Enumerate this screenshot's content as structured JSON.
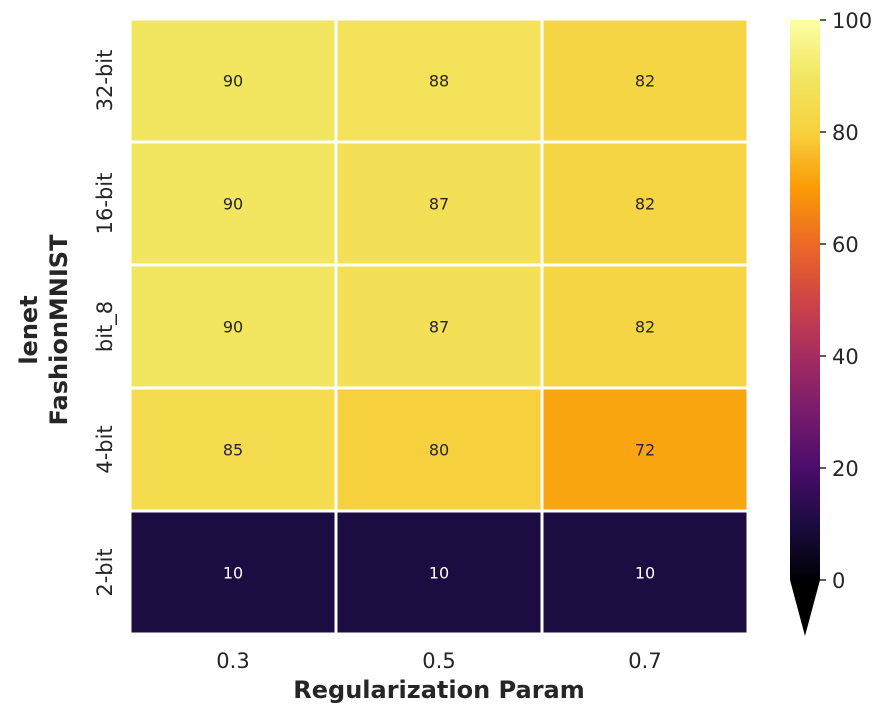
{
  "chart_data": {
    "type": "heatmap",
    "title": "",
    "xlabel": "Regularization Param",
    "ylabel_lines": [
      "lenet",
      "FashionMNIST"
    ],
    "x_categories": [
      "0.3",
      "0.5",
      "0.7"
    ],
    "y_categories": [
      "32-bit",
      "16-bit",
      "bit_8",
      "4-bit",
      "2-bit"
    ],
    "values": [
      [
        90,
        88,
        82
      ],
      [
        90,
        87,
        82
      ],
      [
        90,
        87,
        82
      ],
      [
        85,
        80,
        72
      ],
      [
        10,
        10,
        10
      ]
    ],
    "colormap": "inferno",
    "colorbar": {
      "min": 0,
      "max": 100,
      "ticks": [
        "0",
        "20",
        "40",
        "60",
        "80",
        "100"
      ],
      "extend": "min",
      "under_color": "#000000"
    }
  }
}
